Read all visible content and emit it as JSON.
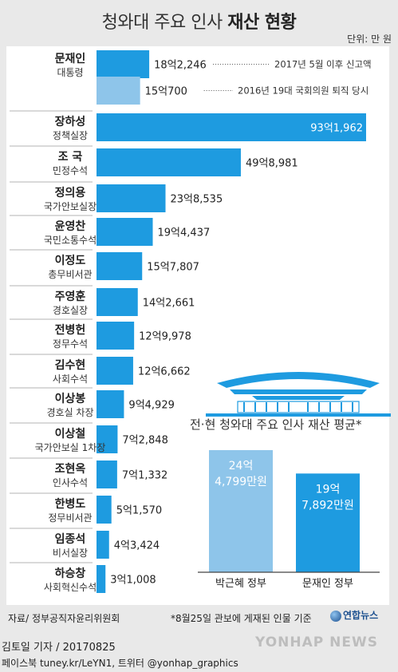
{
  "header": {
    "title_plain": "청와대 주요 인사",
    "title_bold": "재산 현황",
    "unit": "단위: 만 원"
  },
  "chart_data": {
    "type": "bar",
    "orientation": "horizontal",
    "title": "청와대 주요 인사 재산 현황",
    "unit": "만 원",
    "rows": [
      {
        "name": "문재인",
        "role": "대통령",
        "value": 182246,
        "label": "18억2,246",
        "note": "2017년 5월 이후 신고액",
        "color": "#1e9be0"
      },
      {
        "name": "",
        "role": "",
        "value": 150700,
        "label": "15억700",
        "note": "2016년 19대 국회의원 퇴직 당시",
        "color": "#8ec5ea"
      },
      {
        "name": "장하성",
        "role": "정책실장",
        "value": 931962,
        "label": "93억1,962",
        "note": "",
        "color": "#1e9be0"
      },
      {
        "name": "조 국",
        "role": "민정수석",
        "value": 498981,
        "label": "49억8,981",
        "note": "",
        "color": "#1e9be0"
      },
      {
        "name": "정의용",
        "role": "국가안보실장",
        "value": 238535,
        "label": "23억8,535",
        "note": "",
        "color": "#1e9be0"
      },
      {
        "name": "윤영찬",
        "role": "국민소통수석",
        "value": 194437,
        "label": "19억4,437",
        "note": "",
        "color": "#1e9be0"
      },
      {
        "name": "이정도",
        "role": "총무비서관",
        "value": 157807,
        "label": "15억7,807",
        "note": "",
        "color": "#1e9be0"
      },
      {
        "name": "주영훈",
        "role": "경호실장",
        "value": 142661,
        "label": "14억2,661",
        "note": "",
        "color": "#1e9be0"
      },
      {
        "name": "전병헌",
        "role": "정무수석",
        "value": 129978,
        "label": "12억9,978",
        "note": "",
        "color": "#1e9be0"
      },
      {
        "name": "김수현",
        "role": "사회수석",
        "value": 126662,
        "label": "12억6,662",
        "note": "",
        "color": "#1e9be0"
      },
      {
        "name": "이상봉",
        "role": "경호실 차장",
        "value": 94929,
        "label": "9억4,929",
        "note": "",
        "color": "#1e9be0"
      },
      {
        "name": "이상철",
        "role": "국가안보실 1차장",
        "value": 72848,
        "label": "7억2,848",
        "note": "",
        "color": "#1e9be0"
      },
      {
        "name": "조현옥",
        "role": "인사수석",
        "value": 71332,
        "label": "7억1,332",
        "note": "",
        "color": "#1e9be0"
      },
      {
        "name": "한병도",
        "role": "정무비서관",
        "value": 51570,
        "label": "5억1,570",
        "note": "",
        "color": "#1e9be0"
      },
      {
        "name": "임종석",
        "role": "비서실장",
        "value": 43424,
        "label": "4억3,424",
        "note": "",
        "color": "#1e9be0"
      },
      {
        "name": "하승창",
        "role": "사회혁신수석",
        "value": 31008,
        "label": "3억1,008",
        "note": "",
        "color": "#1e9be0"
      }
    ],
    "inset": {
      "type": "bar",
      "title": "전·현 청와대 주요 인사 재산 평균*",
      "categories": [
        "박근혜 정부",
        "문재인 정부"
      ],
      "values": [
        244799,
        197892
      ],
      "labels_top": [
        "24억",
        "19억"
      ],
      "labels_bottom": [
        "4,799만원",
        "7,892만원"
      ],
      "colors": [
        "#8ec5ea",
        "#1e9be0"
      ]
    }
  },
  "footer": {
    "source": "자료/ 정부공직자윤리위원회",
    "note": "*8월25일 관보에 게재된 인물 기준",
    "logo": "연합뉴스",
    "reporter": "김토일 기자 / 20170825",
    "social": "페이스북 tuney.kr/LeYN1, 트위터 @yonhap_graphics",
    "watermark": "YONHAP NEWS"
  }
}
